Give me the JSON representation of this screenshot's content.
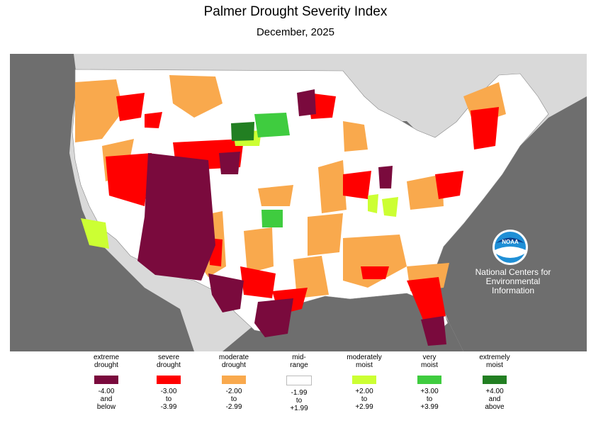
{
  "title": "Palmer Drought Severity Index",
  "subtitle": "December, 2025",
  "credit": {
    "logo_text": "NOAA",
    "line1": "National Centers for",
    "line2": "Environmental",
    "line3": "Information"
  },
  "colors": {
    "extreme": "#7a0a3d",
    "severe": "#ff0000",
    "moderate": "#f9a94d",
    "midrange": "#ffffff",
    "mod_moist": "#ccff33",
    "very_moist": "#3fcc3f",
    "ext_moist": "#227f22",
    "ocean": "#6e6e6e",
    "land_bg": "#d9d9d9"
  },
  "legend": [
    {
      "label1": "extreme",
      "label2": "drought",
      "r1": "-4.00",
      "r2": "and",
      "r3": "below",
      "color_key": "extreme"
    },
    {
      "label1": "severe",
      "label2": "drought",
      "r1": "-3.00",
      "r2": "to",
      "r3": "-3.99",
      "color_key": "severe"
    },
    {
      "label1": "moderate",
      "label2": "drought",
      "r1": "-2.00",
      "r2": "to",
      "r3": "-2.99",
      "color_key": "moderate"
    },
    {
      "label1": "mid-",
      "label2": "range",
      "r1": "-1.99",
      "r2": "to",
      "r3": "+1.99",
      "color_key": "midrange"
    },
    {
      "label1": "moderately",
      "label2": "moist",
      "r1": "+2.00",
      "r2": "to",
      "r3": "+2.99",
      "color_key": "mod_moist"
    },
    {
      "label1": "very",
      "label2": "moist",
      "r1": "+3.00",
      "r2": "to",
      "r3": "+3.99",
      "color_key": "very_moist"
    },
    {
      "label1": "extremely",
      "label2": "moist",
      "r1": "+4.00",
      "r2": "and",
      "r3": "above",
      "color_key": "ext_moist"
    }
  ]
}
